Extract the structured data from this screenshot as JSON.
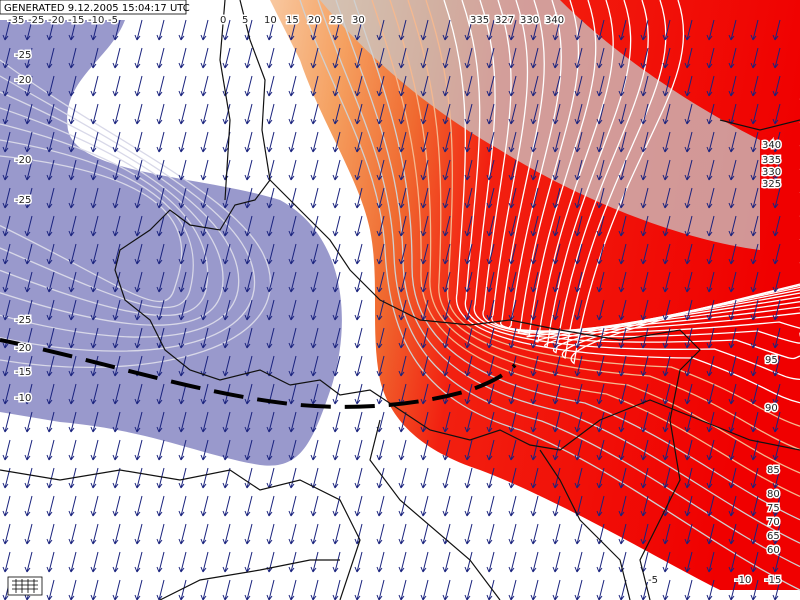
{
  "header": {
    "generated": "GENERATED 9.12.2005 15:04:17 UTC"
  },
  "contour_labels": {
    "top": [
      "-35",
      "-25",
      "-20",
      "-15",
      "-10",
      "-5",
      "0",
      "5",
      "10",
      "15",
      "20",
      "25",
      "30",
      "335",
      "327",
      "330",
      "340"
    ],
    "left": [
      "-25",
      "-20",
      "-20",
      "-25",
      "-25",
      "-20",
      "-15",
      "-10"
    ],
    "right": [
      "340",
      "335",
      "330",
      "325",
      "95",
      "90",
      "85",
      "80",
      "75",
      "70",
      "65",
      "60"
    ],
    "bottom": [
      "-5",
      "-10",
      "-15"
    ]
  }
}
